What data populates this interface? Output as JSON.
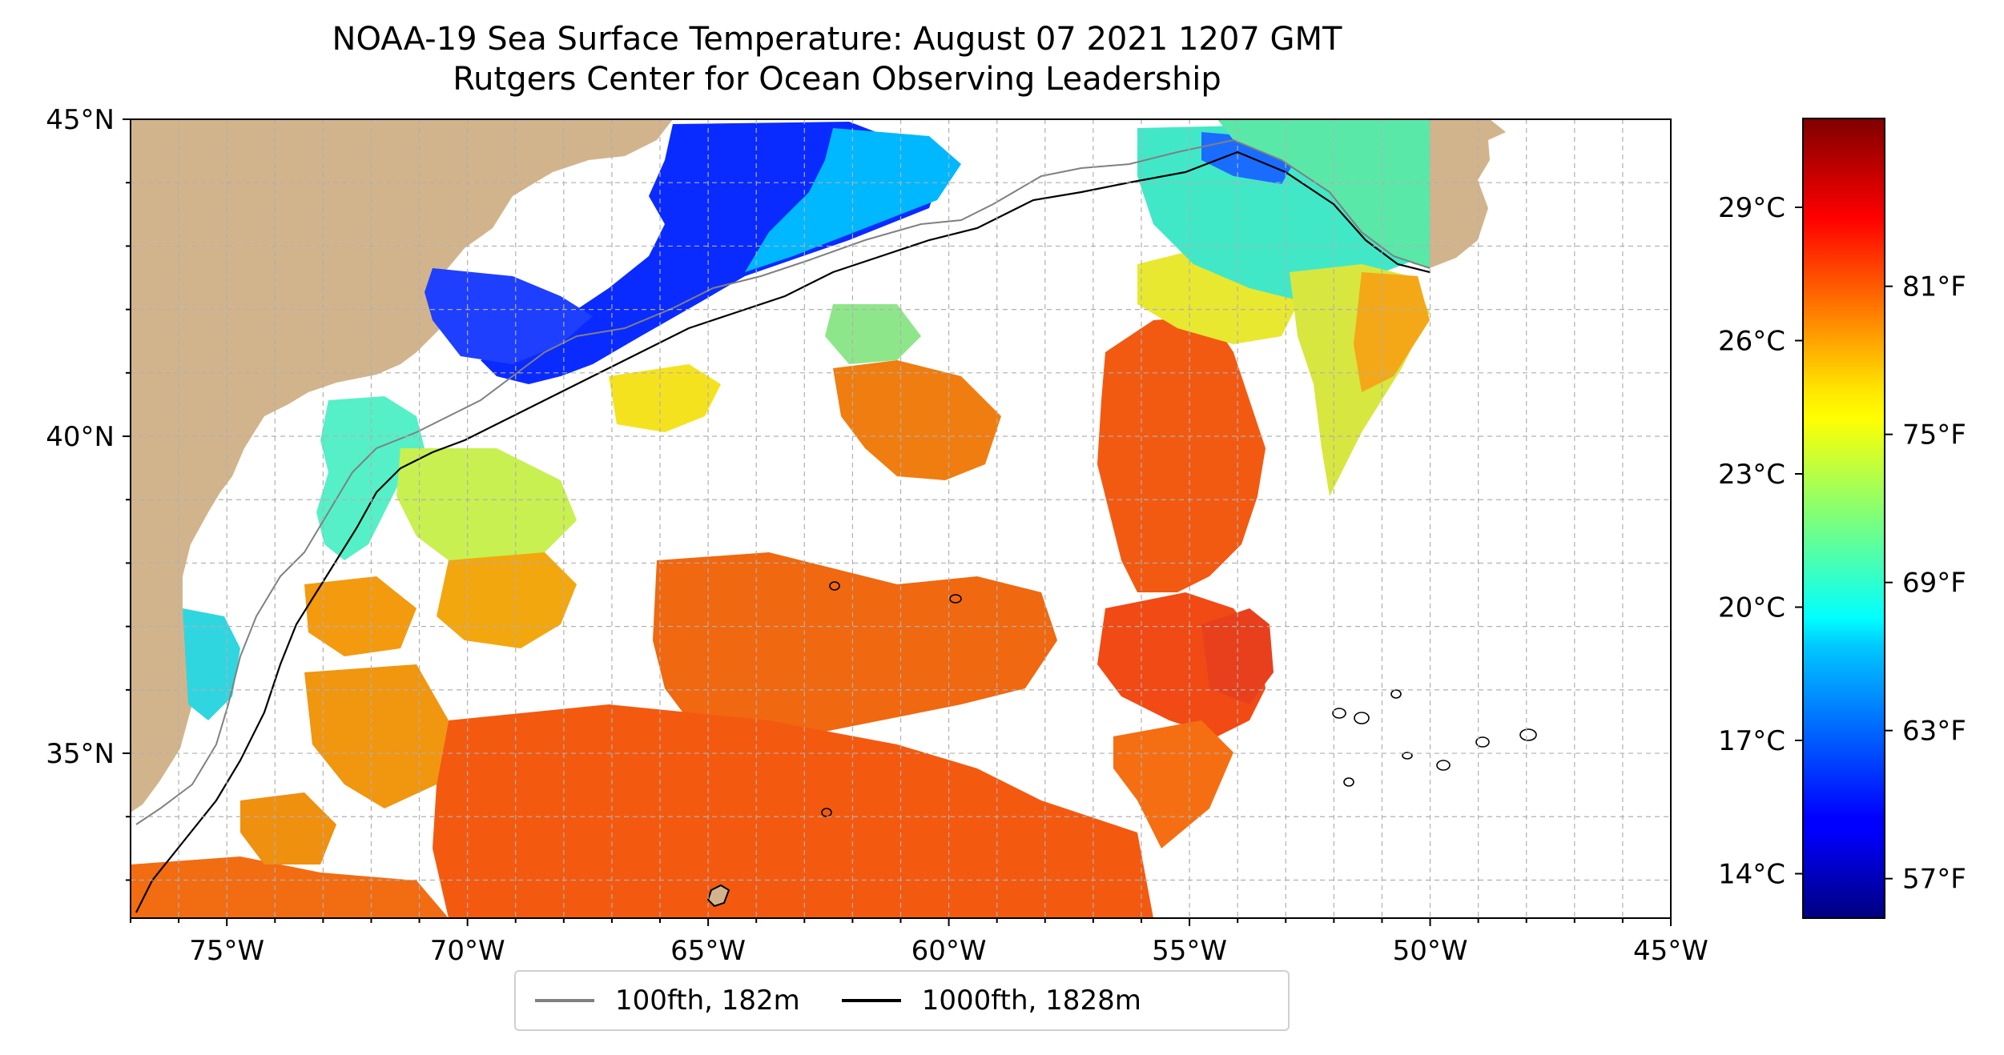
{
  "title": {
    "line1": "NOAA-19 Sea Surface Temperature: August 07 2021 1207 GMT",
    "line2": "Rutgers Center for Ocean Observing Leadership"
  },
  "map": {
    "lon_range": [
      -77,
      -45
    ],
    "lat_range": [
      32.4,
      45
    ],
    "lon_ticks": [
      "75°W",
      "70°W",
      "65°W",
      "60°W",
      "55°W",
      "50°W",
      "45°W"
    ],
    "lat_ticks": [
      "45°N",
      "40°N",
      "35°N"
    ],
    "gridlines": true,
    "land_color": "#d2b48c",
    "lake_color": "#a6c8e8"
  },
  "colorbar": {
    "colormap": "jet",
    "range_c": [
      13,
      31
    ],
    "celsius_ticks": [
      "29°C",
      "26°C",
      "23°C",
      "20°C",
      "17°C",
      "14°C"
    ],
    "fahrenheit_ticks": [
      "81°F",
      "75°F",
      "69°F",
      "63°F",
      "57°F"
    ]
  },
  "legend": {
    "items": [
      {
        "label": "100fth, 182m",
        "color": "#808080"
      },
      {
        "label": "1000fth, 1828m",
        "color": "#000000"
      }
    ]
  }
}
